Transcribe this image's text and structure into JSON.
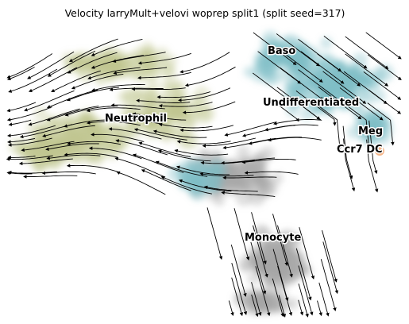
{
  "chart_data": {
    "type": "scatter",
    "title": "Velocity larryMult+velovi woprep split1 (split seed=317)",
    "xlabel": "",
    "ylabel": "",
    "grid": false,
    "legend": "on data",
    "overlay": "velocity streamlines with arrowheads",
    "clusters": [
      {
        "name": "Baso",
        "color": "#7fbcc7"
      },
      {
        "name": "Undifferentiated",
        "color": "#7fbcc7"
      },
      {
        "name": "Neutrophil",
        "color": "#bfc58f"
      },
      {
        "name": "Meg",
        "color": "#7fbcc7"
      },
      {
        "name": "Ccr7 DC",
        "color": "#f2a46b"
      },
      {
        "name": "Monocyte",
        "color": "#a6a6a6"
      }
    ]
  }
}
